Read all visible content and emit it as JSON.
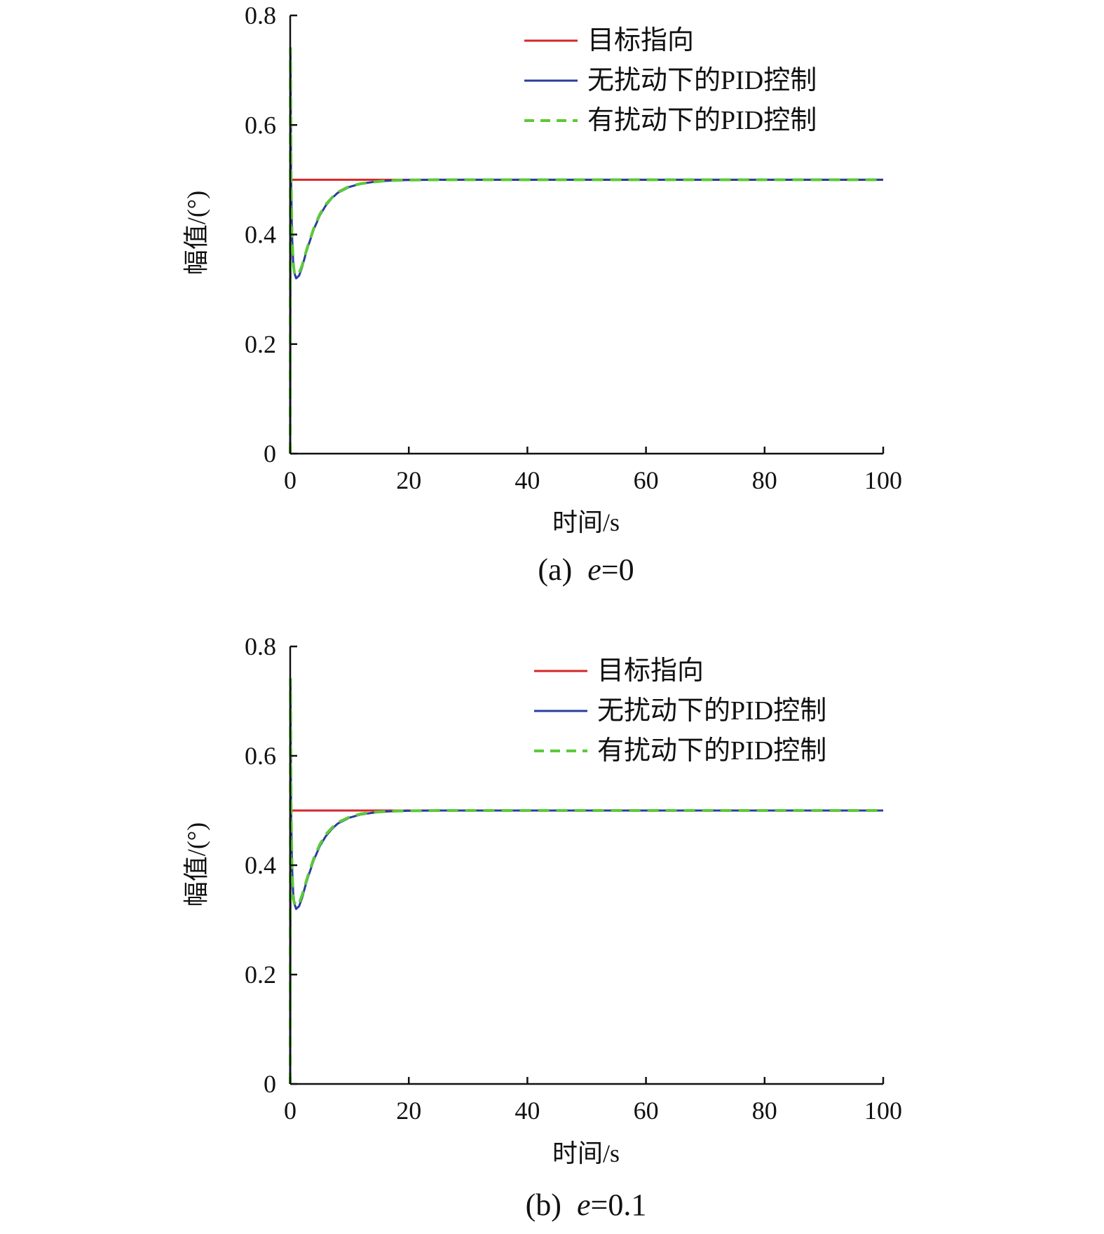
{
  "chart_data": [
    {
      "type": "line",
      "caption_prefix": "(a)",
      "caption_var": "e",
      "caption_rest": "=0",
      "xlabel": "时间/s",
      "ylabel": "幅值/(°)",
      "xlim": [
        0,
        100
      ],
      "ylim": [
        0,
        0.8
      ],
      "xticks": [
        "0",
        "20",
        "40",
        "60",
        "80",
        "100"
      ],
      "yticks": [
        "0",
        "0.2",
        "0.4",
        "0.6",
        "0.8"
      ],
      "grid": false,
      "legend_position": "top-right",
      "series": [
        {
          "name": "目标指向",
          "color": "#d62728",
          "style": "solid",
          "x": [
            0,
            0.05,
            100
          ],
          "y": [
            0,
            0.5,
            0.5
          ]
        },
        {
          "name": "无扰动下的PID控制",
          "color": "#2a3d9c",
          "style": "solid",
          "x": [
            0,
            0.05,
            0.15,
            0.3,
            0.5,
            0.7,
            1,
            1.5,
            2,
            2.5,
            3,
            4,
            5,
            6,
            7,
            8,
            10,
            12,
            14,
            16,
            18,
            20,
            25,
            30,
            40,
            60,
            80,
            100
          ],
          "y": [
            0,
            0.74,
            0.5,
            0.4,
            0.35,
            0.33,
            0.32,
            0.325,
            0.34,
            0.36,
            0.378,
            0.41,
            0.435,
            0.453,
            0.466,
            0.476,
            0.487,
            0.493,
            0.496,
            0.498,
            0.499,
            0.4995,
            0.5,
            0.5,
            0.5,
            0.5,
            0.5,
            0.5
          ]
        },
        {
          "name": "有扰动下的PID控制",
          "color": "#5cc93a",
          "style": "dashed",
          "x": [
            0,
            0.05,
            0.15,
            0.3,
            0.5,
            0.7,
            1,
            1.5,
            2,
            2.5,
            3,
            4,
            5,
            6,
            7,
            8,
            10,
            12,
            14,
            16,
            18,
            20,
            25,
            30,
            40,
            60,
            80,
            100
          ],
          "y": [
            0,
            0.74,
            0.5,
            0.4,
            0.35,
            0.33,
            0.325,
            0.33,
            0.343,
            0.362,
            0.38,
            0.412,
            0.437,
            0.455,
            0.467,
            0.477,
            0.488,
            0.493,
            0.496,
            0.498,
            0.499,
            0.4995,
            0.5,
            0.5,
            0.5,
            0.5,
            0.5,
            0.5
          ]
        }
      ]
    },
    {
      "type": "line",
      "caption_prefix": "(b)",
      "caption_var": "e",
      "caption_rest": "=0.1",
      "xlabel": "时间/s",
      "ylabel": "幅值/(°)",
      "xlim": [
        0,
        100
      ],
      "ylim": [
        0,
        0.8
      ],
      "xticks": [
        "0",
        "20",
        "40",
        "60",
        "80",
        "100"
      ],
      "yticks": [
        "0",
        "0.2",
        "0.4",
        "0.6",
        "0.8"
      ],
      "grid": false,
      "legend_position": "top-right",
      "series": [
        {
          "name": "目标指向",
          "color": "#d62728",
          "style": "solid",
          "x": [
            0,
            0.05,
            100
          ],
          "y": [
            0,
            0.5,
            0.5
          ]
        },
        {
          "name": "无扰动下的PID控制",
          "color": "#2a3d9c",
          "style": "solid",
          "x": [
            0,
            0.05,
            0.15,
            0.3,
            0.5,
            0.7,
            1,
            1.5,
            2,
            2.5,
            3,
            4,
            5,
            6,
            7,
            8,
            10,
            12,
            14,
            16,
            18,
            20,
            25,
            30,
            40,
            60,
            80,
            100
          ],
          "y": [
            0,
            0.74,
            0.5,
            0.4,
            0.35,
            0.33,
            0.32,
            0.325,
            0.34,
            0.36,
            0.378,
            0.41,
            0.435,
            0.453,
            0.466,
            0.476,
            0.487,
            0.493,
            0.496,
            0.498,
            0.499,
            0.4995,
            0.5,
            0.5,
            0.5,
            0.5,
            0.5,
            0.5
          ]
        },
        {
          "name": "有扰动下的PID控制",
          "color": "#5cc93a",
          "style": "dashed",
          "x": [
            0,
            0.05,
            0.15,
            0.3,
            0.5,
            0.7,
            1,
            1.5,
            2,
            2.5,
            3,
            4,
            5,
            6,
            7,
            8,
            10,
            12,
            14,
            16,
            18,
            20,
            25,
            30,
            40,
            60,
            80,
            100
          ],
          "y": [
            0,
            0.74,
            0.5,
            0.4,
            0.34,
            0.33,
            0.335,
            0.33,
            0.345,
            0.363,
            0.381,
            0.413,
            0.438,
            0.456,
            0.468,
            0.478,
            0.488,
            0.494,
            0.497,
            0.498,
            0.499,
            0.4995,
            0.5,
            0.5,
            0.5,
            0.5,
            0.5,
            0.5
          ]
        }
      ]
    }
  ]
}
